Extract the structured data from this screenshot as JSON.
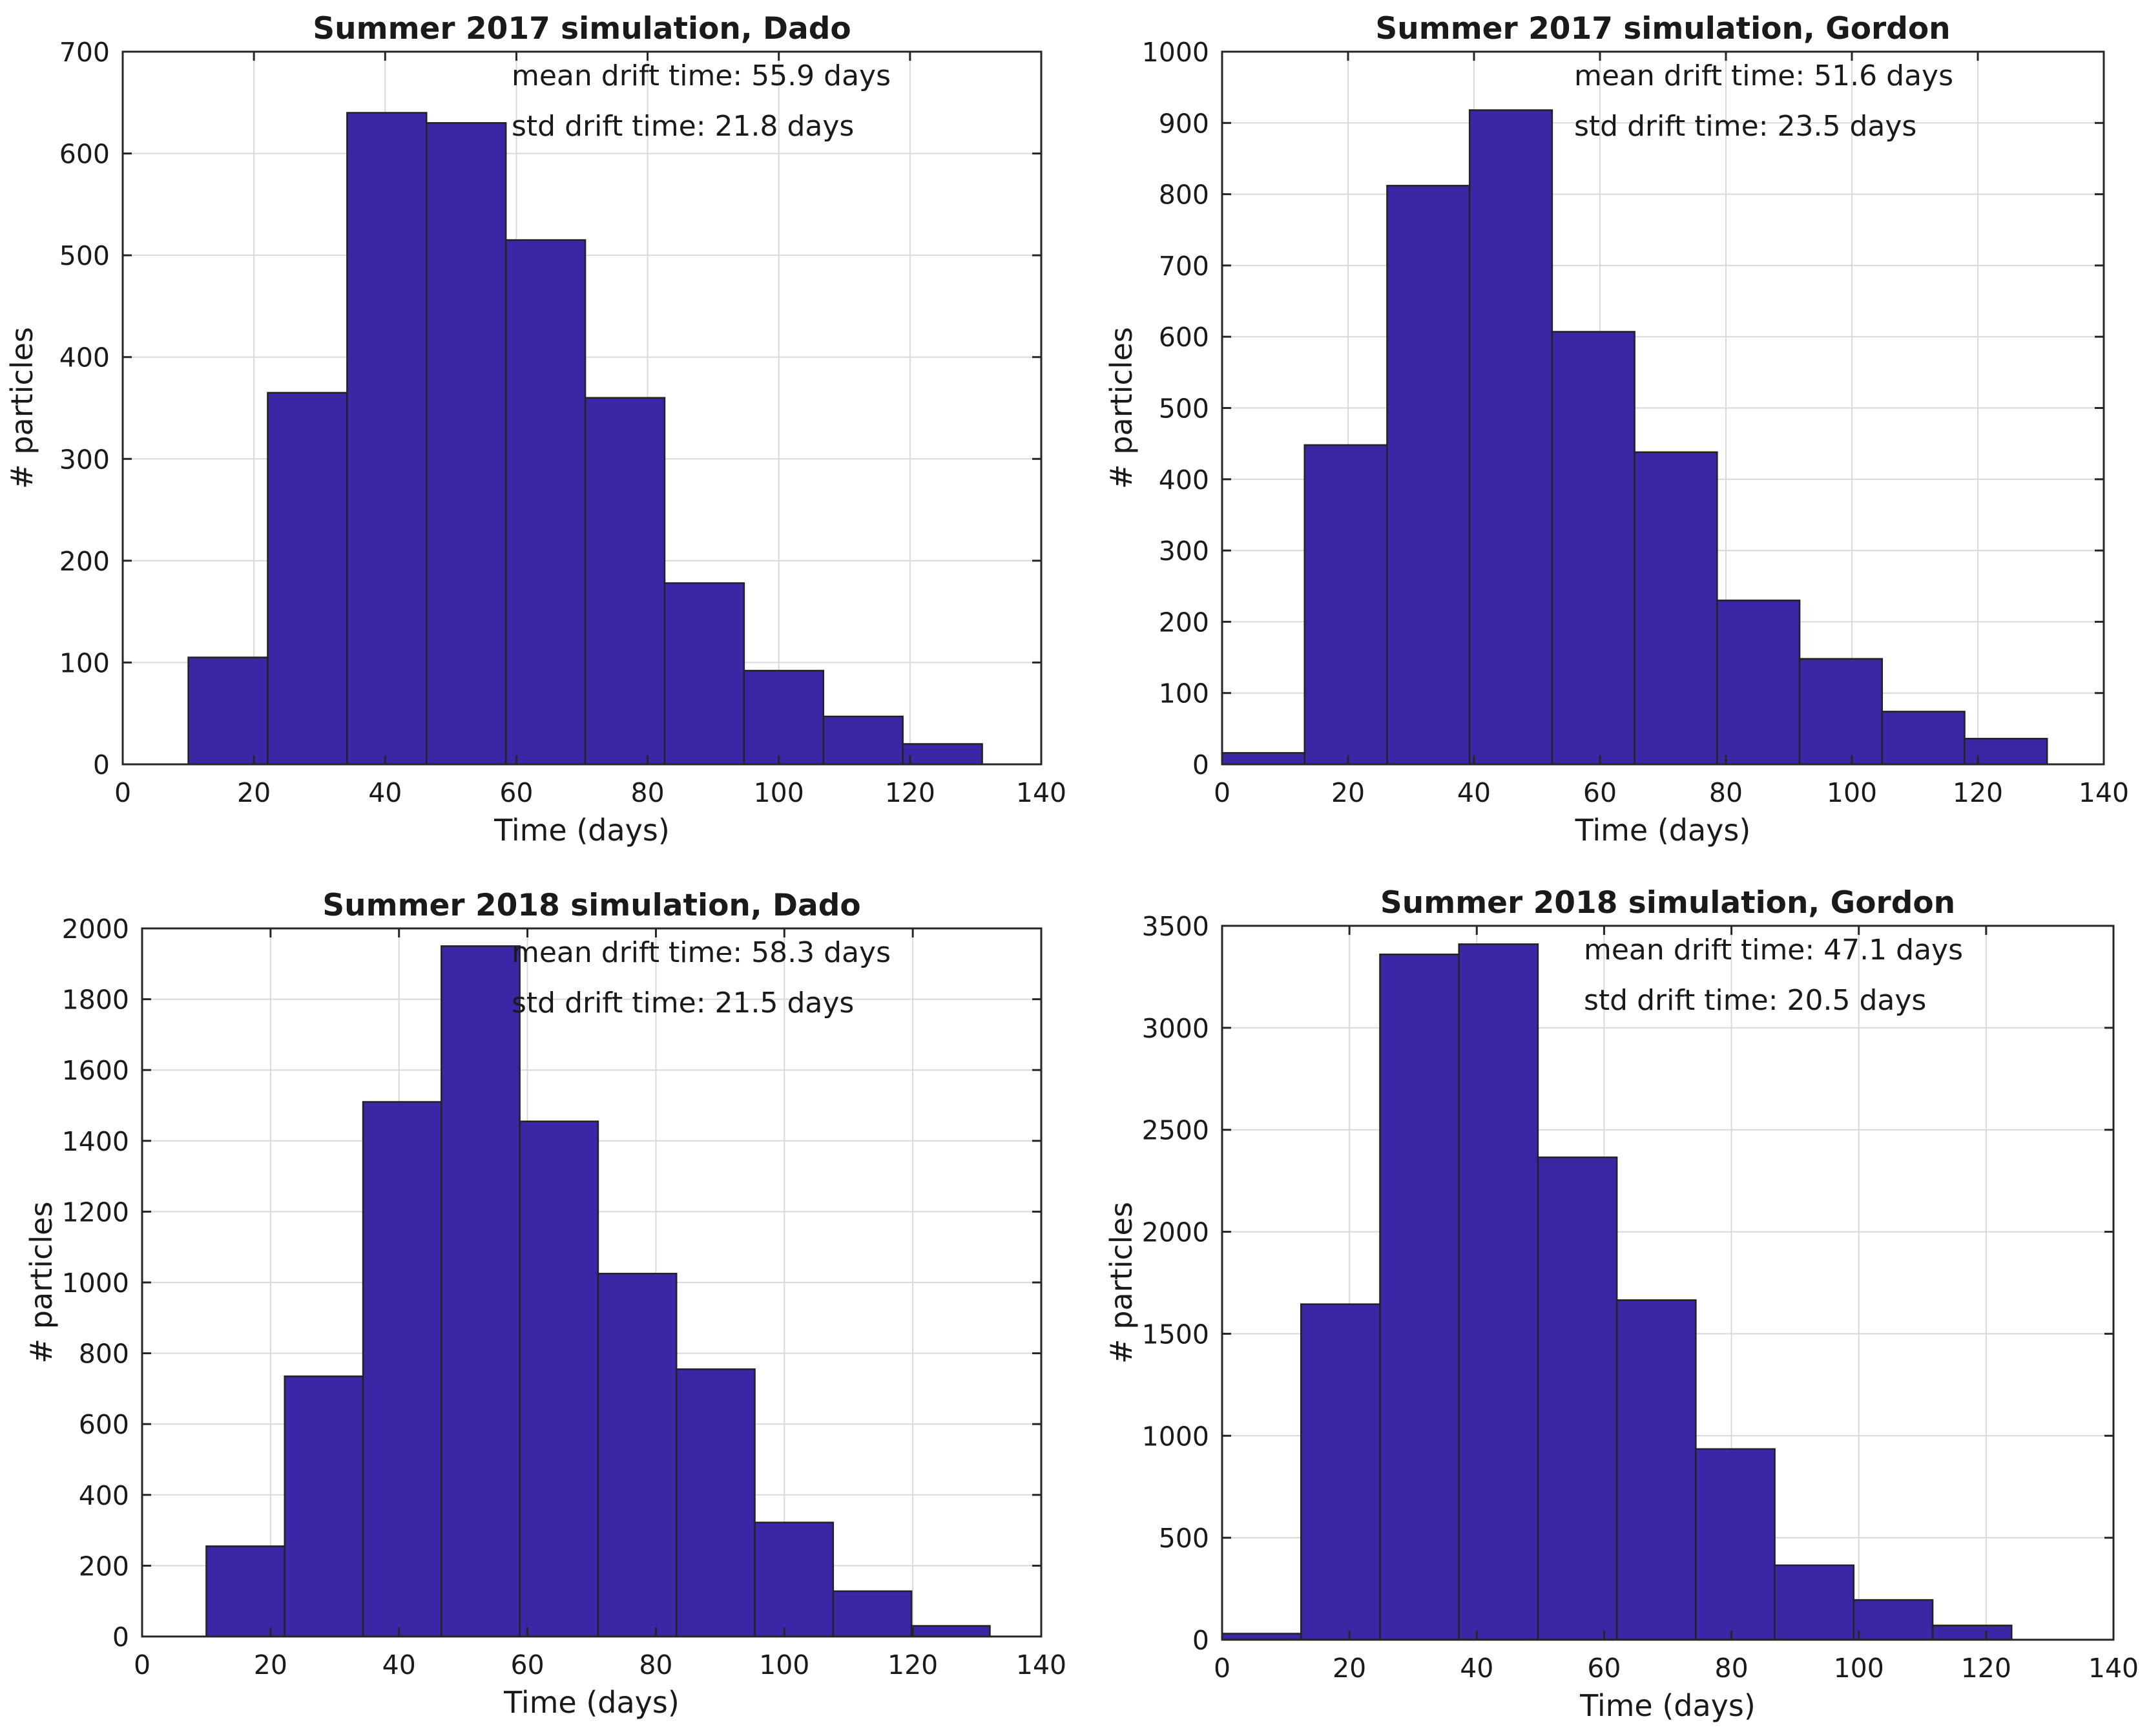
{
  "colors": {
    "bar_fill": "#3c26a6",
    "bar_edge": "#222222",
    "grid": "#d9d9d9",
    "axis": "#262626"
  },
  "chart_data": [
    {
      "type": "bar",
      "title": "Summer 2017 simulation, Dado",
      "xlabel": "Time (days)",
      "ylabel": "# particles",
      "xlim": [
        0,
        140
      ],
      "ylim": [
        0,
        700
      ],
      "xticks": [
        0,
        20,
        40,
        60,
        80,
        100,
        120,
        140
      ],
      "yticks": [
        0,
        100,
        200,
        300,
        400,
        500,
        600,
        700
      ],
      "grid": true,
      "bin_edges": [
        10,
        22.1,
        34.2,
        46.3,
        58.4,
        70.5,
        82.6,
        94.7,
        106.8,
        118.9,
        131
      ],
      "values": [
        105,
        365,
        640,
        630,
        515,
        360,
        178,
        92,
        47,
        20
      ],
      "annotations": [
        "mean drift time: 55.9 days",
        "std drift time: 21.8 days"
      ]
    },
    {
      "type": "bar",
      "title": "Summer 2017 simulation, Gordon",
      "xlabel": "Time (days)",
      "ylabel": "# particles",
      "xlim": [
        0,
        140
      ],
      "ylim": [
        0,
        1000
      ],
      "xticks": [
        0,
        20,
        40,
        60,
        80,
        100,
        120,
        140
      ],
      "yticks": [
        0,
        100,
        200,
        300,
        400,
        500,
        600,
        700,
        800,
        900,
        1000
      ],
      "grid": true,
      "bin_edges": [
        0,
        13.1,
        26.2,
        39.3,
        52.4,
        65.5,
        78.6,
        91.7,
        104.8,
        117.9,
        131
      ],
      "values": [
        16,
        448,
        812,
        918,
        607,
        438,
        230,
        148,
        74,
        36
      ],
      "annotations": [
        "mean drift time: 51.6 days",
        "std drift time: 23.5 days"
      ]
    },
    {
      "type": "bar",
      "title": "Summer 2018 simulation, Dado",
      "xlabel": "Time (days)",
      "ylabel": "# particles",
      "xlim": [
        0,
        140
      ],
      "ylim": [
        0,
        2000
      ],
      "xticks": [
        0,
        20,
        40,
        60,
        80,
        100,
        120,
        140
      ],
      "yticks": [
        0,
        200,
        400,
        600,
        800,
        1000,
        1200,
        1400,
        1600,
        1800,
        2000
      ],
      "grid": true,
      "bin_edges": [
        10,
        22.2,
        34.4,
        46.6,
        58.8,
        71,
        83.2,
        95.4,
        107.6,
        119.8,
        132
      ],
      "values": [
        255,
        735,
        1510,
        1950,
        1455,
        1025,
        755,
        322,
        128,
        30
      ],
      "annotations": [
        "mean drift time: 58.3 days",
        "std drift time: 21.5 days"
      ]
    },
    {
      "type": "bar",
      "title": "Summer 2018 simulation, Gordon",
      "xlabel": "Time (days)",
      "ylabel": "# particles",
      "xlim": [
        0,
        140
      ],
      "ylim": [
        0,
        3500
      ],
      "xticks": [
        0,
        20,
        40,
        60,
        80,
        100,
        120,
        140
      ],
      "yticks": [
        0,
        500,
        1000,
        1500,
        2000,
        2500,
        3000,
        3500
      ],
      "grid": true,
      "bin_edges": [
        0,
        12.4,
        24.8,
        37.2,
        49.6,
        62,
        74.4,
        86.8,
        99.2,
        111.6,
        124
      ],
      "values": [
        30,
        1645,
        3360,
        3410,
        2365,
        1665,
        935,
        365,
        195,
        70
      ],
      "annotations": [
        "mean drift time: 47.1 days",
        "std drift time: 20.5 days"
      ]
    }
  ]
}
